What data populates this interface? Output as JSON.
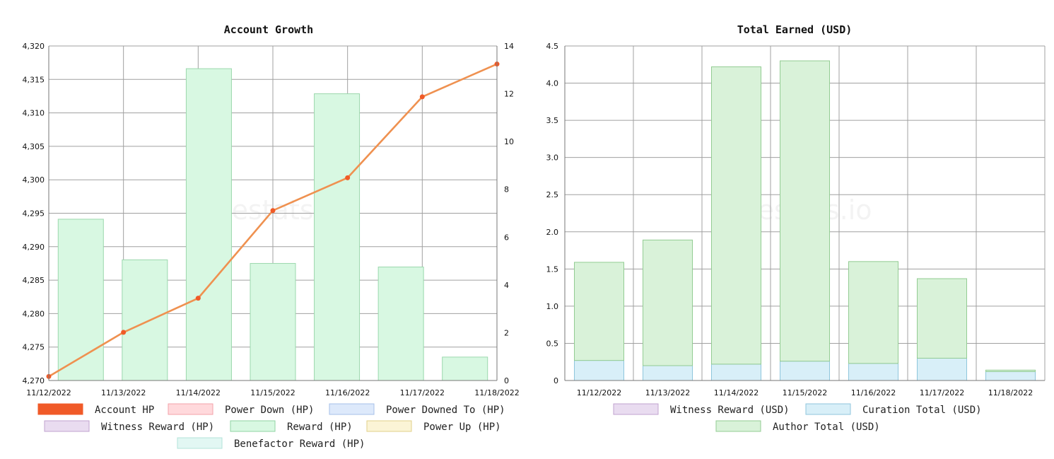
{
  "watermark": "hivestats.io",
  "chart_data": [
    {
      "type": "bar",
      "title": "Account Growth",
      "categories": [
        "11/12/2022",
        "11/13/2022",
        "11/14/2022",
        "11/15/2022",
        "11/16/2022",
        "11/17/2022",
        "11/18/2022"
      ],
      "y_left": {
        "ylim": [
          4270,
          4320
        ],
        "ticks": [
          "4,270",
          "4,275",
          "4,280",
          "4,285",
          "4,290",
          "4,295",
          "4,300",
          "4,305",
          "4,310",
          "4,315",
          "4,320"
        ]
      },
      "y_right": {
        "ylim": [
          0,
          14
        ],
        "ticks": [
          "0",
          "2",
          "4",
          "6",
          "8",
          "10",
          "12",
          "14"
        ]
      },
      "line_series": {
        "name": "Account HP",
        "axis": "left",
        "color": "#ef9150",
        "marker_color": "#f05a28",
        "values": [
          4270.6,
          4277.2,
          4282.3,
          4295.4,
          4300.3,
          4312.4,
          4317.3
        ]
      },
      "bar_series": {
        "name": "Reward (HP)",
        "axis": "right",
        "fill": "#d8f8e2",
        "stroke": "#9bd8ad",
        "values": [
          6.75,
          5.05,
          13.05,
          4.9,
          12.0,
          4.75,
          0.98
        ]
      },
      "grid": true,
      "legend_position": "bottom",
      "legend": [
        {
          "label": "Account HP",
          "fill": "#f05a28",
          "stroke": "#f05a28"
        },
        {
          "label": "Power Down (HP)",
          "fill": "#ffd9dc",
          "stroke": "#f3a2aa"
        },
        {
          "label": "Power Downed To (HP)",
          "fill": "#dde9fb",
          "stroke": "#a6c0e8"
        },
        {
          "label": "Witness Reward (HP)",
          "fill": "#e9dcf0",
          "stroke": "#c1a3cf"
        },
        {
          "label": "Reward (HP)",
          "fill": "#d8f8e2",
          "stroke": "#8fd3a3"
        },
        {
          "label": "Power Up (HP)",
          "fill": "#fbf4d6",
          "stroke": "#e1d08a"
        },
        {
          "label": "Benefactor Reward (HP)",
          "fill": "#e2f7f3",
          "stroke": "#b3e3da"
        }
      ]
    },
    {
      "type": "bar",
      "title": "Total Earned (USD)",
      "categories": [
        "11/12/2022",
        "11/13/2022",
        "11/14/2022",
        "11/15/2022",
        "11/16/2022",
        "11/17/2022",
        "11/18/2022"
      ],
      "ylim": [
        0,
        4.5
      ],
      "ticks": [
        "0",
        "0.5",
        "1.0",
        "1.5",
        "2.0",
        "2.5",
        "3.0",
        "3.5",
        "4.0",
        "4.5"
      ],
      "stacked": true,
      "series": [
        {
          "name": "Curation Total (USD)",
          "fill": "#d8eff8",
          "stroke": "#8fc6dc",
          "values": [
            0.27,
            0.2,
            0.22,
            0.26,
            0.23,
            0.3,
            0.12
          ]
        },
        {
          "name": "Author Total (USD)",
          "fill": "#d9f2d9",
          "stroke": "#93cc93",
          "values": [
            1.32,
            1.69,
            4.0,
            4.04,
            1.37,
            1.07,
            0.02
          ]
        }
      ],
      "grid": true,
      "legend_position": "bottom",
      "legend": [
        {
          "label": "Witness Reward (USD)",
          "fill": "#e9dcf0",
          "stroke": "#c1a3cf"
        },
        {
          "label": "Curation Total (USD)",
          "fill": "#d8eff8",
          "stroke": "#8fc6dc"
        },
        {
          "label": "Author Total (USD)",
          "fill": "#d9f2d9",
          "stroke": "#93cc93"
        }
      ]
    }
  ]
}
